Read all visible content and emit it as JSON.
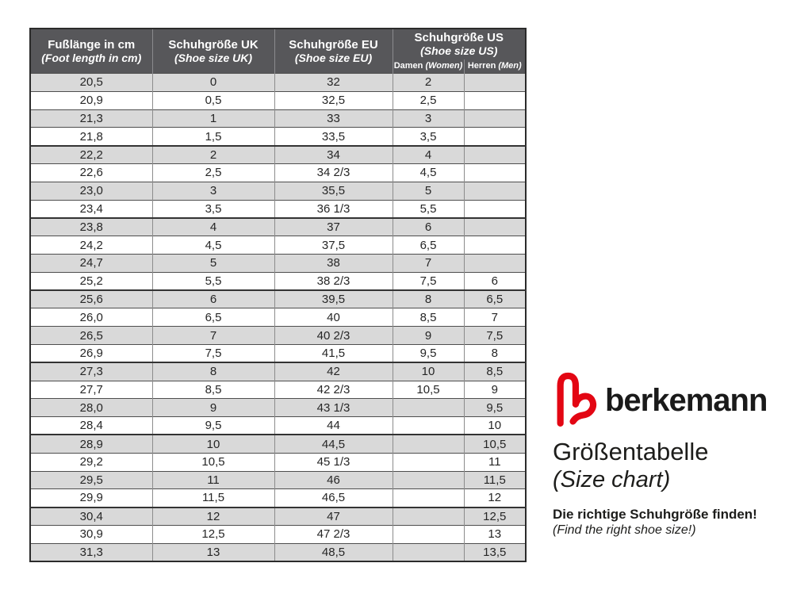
{
  "table": {
    "columns": [
      {
        "label": "Fußlänge in cm",
        "sublabel": "(Foot length in cm)"
      },
      {
        "label": "Schuhgröße UK",
        "sublabel": "(Shoe size UK)"
      },
      {
        "label": "Schuhgröße EU",
        "sublabel": "(Shoe size EU)"
      },
      {
        "label": "Schuhgröße US",
        "sublabel": "(Shoe size US)",
        "subcolumns": [
          {
            "label": "Damen",
            "note": "(Women)"
          },
          {
            "label": "Herren",
            "note": "(Men)"
          }
        ]
      }
    ],
    "rows": [
      [
        "20,5",
        "0",
        "32",
        "2",
        ""
      ],
      [
        "20,9",
        "0,5",
        "32,5",
        "2,5",
        ""
      ],
      [
        "21,3",
        "1",
        "33",
        "3",
        ""
      ],
      [
        "21,8",
        "1,5",
        "33,5",
        "3,5",
        ""
      ],
      [
        "22,2",
        "2",
        "34",
        "4",
        ""
      ],
      [
        "22,6",
        "2,5",
        "34 2/3",
        "4,5",
        ""
      ],
      [
        "23,0",
        "3",
        "35,5",
        "5",
        ""
      ],
      [
        "23,4",
        "3,5",
        "36 1/3",
        "5,5",
        ""
      ],
      [
        "23,8",
        "4",
        "37",
        "6",
        ""
      ],
      [
        "24,2",
        "4,5",
        "37,5",
        "6,5",
        ""
      ],
      [
        "24,7",
        "5",
        "38",
        "7",
        ""
      ],
      [
        "25,2",
        "5,5",
        "38 2/3",
        "7,5",
        "6"
      ],
      [
        "25,6",
        "6",
        "39,5",
        "8",
        "6,5"
      ],
      [
        "26,0",
        "6,5",
        "40",
        "8,5",
        "7"
      ],
      [
        "26,5",
        "7",
        "40 2/3",
        "9",
        "7,5"
      ],
      [
        "26,9",
        "7,5",
        "41,5",
        "9,5",
        "8"
      ],
      [
        "27,3",
        "8",
        "42",
        "10",
        "8,5"
      ],
      [
        "27,7",
        "8,5",
        "42 2/3",
        "10,5",
        "9"
      ],
      [
        "28,0",
        "9",
        "43 1/3",
        "",
        "9,5"
      ],
      [
        "28,4",
        "9,5",
        "44",
        "",
        "10"
      ],
      [
        "28,9",
        "10",
        "44,5",
        "",
        "10,5"
      ],
      [
        "29,2",
        "10,5",
        "45 1/3",
        "",
        "11"
      ],
      [
        "29,5",
        "11",
        "46",
        "",
        "11,5"
      ],
      [
        "29,9",
        "11,5",
        "46,5",
        "",
        "12"
      ],
      [
        "30,4",
        "12",
        "47",
        "",
        "12,5"
      ],
      [
        "30,9",
        "12,5",
        "47 2/3",
        "",
        "13"
      ],
      [
        "31,3",
        "13",
        "48,5",
        "",
        "13,5"
      ]
    ]
  },
  "branding": {
    "wordmark": "berkemann",
    "title": "Größentabelle",
    "subtitle": "(Size chart)",
    "tagline": "Die richtige Schuhgröße finden!",
    "tagline_translation": "(Find the right shoe size!)"
  },
  "colors": {
    "logo_red": "#e30613",
    "header_background": "#57575a",
    "header_text": "#ffffff",
    "stripe_gray": "#d9d9d9",
    "border_dark": "#2b2b2b"
  }
}
